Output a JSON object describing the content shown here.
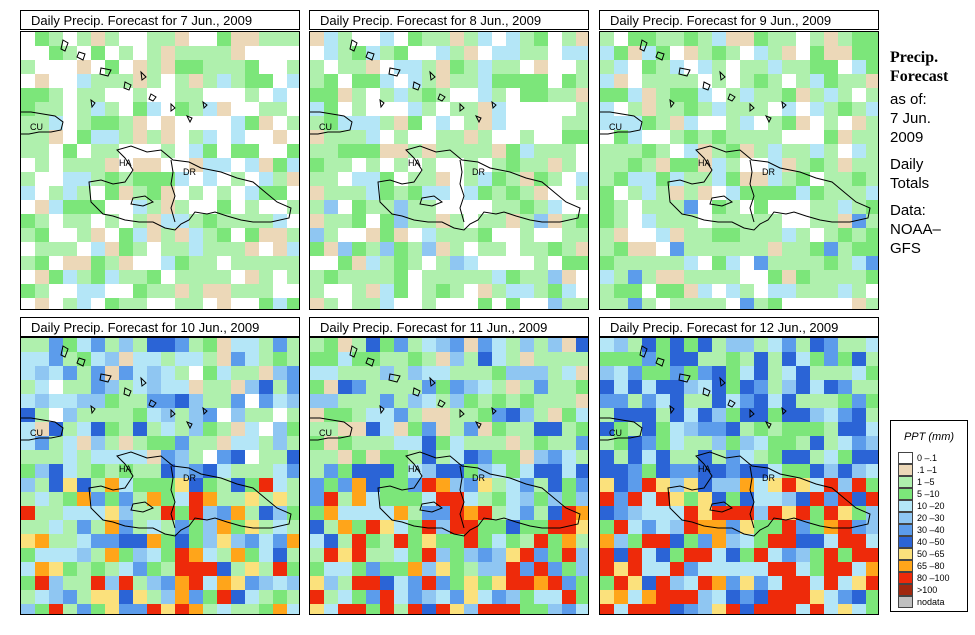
{
  "panels": [
    {
      "title": "Daily Precip. Forecast for  7 Jun., 2009",
      "level": 0
    },
    {
      "title": "Daily Precip. Forecast for  8 Jun., 2009",
      "level": 1
    },
    {
      "title": "Daily Precip. Forecast for  9 Jun., 2009",
      "level": 2
    },
    {
      "title": "Daily Precip. Forecast for  10 Jun., 2009",
      "level": 3
    },
    {
      "title": "Daily Precip. Forecast for  11 Jun., 2009",
      "level": 4
    },
    {
      "title": "Daily Precip. Forecast for  12 Jun., 2009",
      "level": 5
    }
  ],
  "map_labels": {
    "cuba": "CU",
    "haiti": "HA",
    "dominican_republic": "DR"
  },
  "sidebar": {
    "heading1": "Precip.",
    "heading2": "Forecast",
    "asof": "as of:",
    "date1": "7 Jun.",
    "date2": "2009",
    "daily": "Daily",
    "totals": "Totals",
    "data_label": "Data:",
    "source1": "NOAA–",
    "source2": "GFS"
  },
  "legend": {
    "title": "PPT (mm)",
    "items": [
      {
        "label": "0 –.1",
        "color": "#ffffff"
      },
      {
        "label": ".1 –1",
        "color": "#ecd8b8"
      },
      {
        "label": "1 –5",
        "color": "#aff0ad"
      },
      {
        "label": "5 –10",
        "color": "#7ce67a"
      },
      {
        "label": "10 –20",
        "color": "#b4e6f7"
      },
      {
        "label": "20 –30",
        "color": "#8fc6f2"
      },
      {
        "label": "30 –40",
        "color": "#5c9ceb"
      },
      {
        "label": "40 –50",
        "color": "#2b64d6"
      },
      {
        "label": "50 –65",
        "color": "#fbe17c"
      },
      {
        "label": "65 –80",
        "color": "#ffa51a"
      },
      {
        "label": "80 –100",
        "color": "#ee2a0a"
      },
      {
        "label": ">100",
        "color": "#a0280f"
      },
      {
        "label": "nodata",
        "color": "#c0c0c0"
      }
    ]
  }
}
